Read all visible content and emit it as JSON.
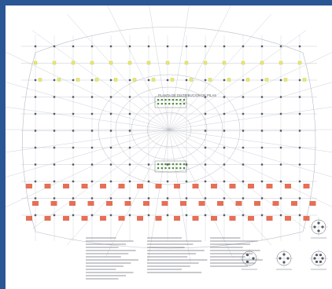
{
  "drawing": {
    "title": "PLANTA DE DISTRIBUCION DE PILAS",
    "colors": {
      "background": "#ffffff",
      "frame": "#2a5694",
      "grid_lines": "#b8bcc4",
      "pile_marks": "#555a63",
      "highlight_yellow": "#e8ea6a",
      "pile_caps_red": "#e2563a",
      "annotation_text": "#6e737c"
    },
    "details": [
      {
        "name": "detail-1-icon",
        "kind": "pile-cap-detail-3"
      },
      {
        "name": "detail-2-icon",
        "kind": "pile-cap-detail-4"
      },
      {
        "name": "detail-3-icon",
        "kind": "pile-cap-detail-4"
      },
      {
        "name": "detail-4-icon",
        "kind": "pile-cap-detail-6"
      }
    ]
  }
}
